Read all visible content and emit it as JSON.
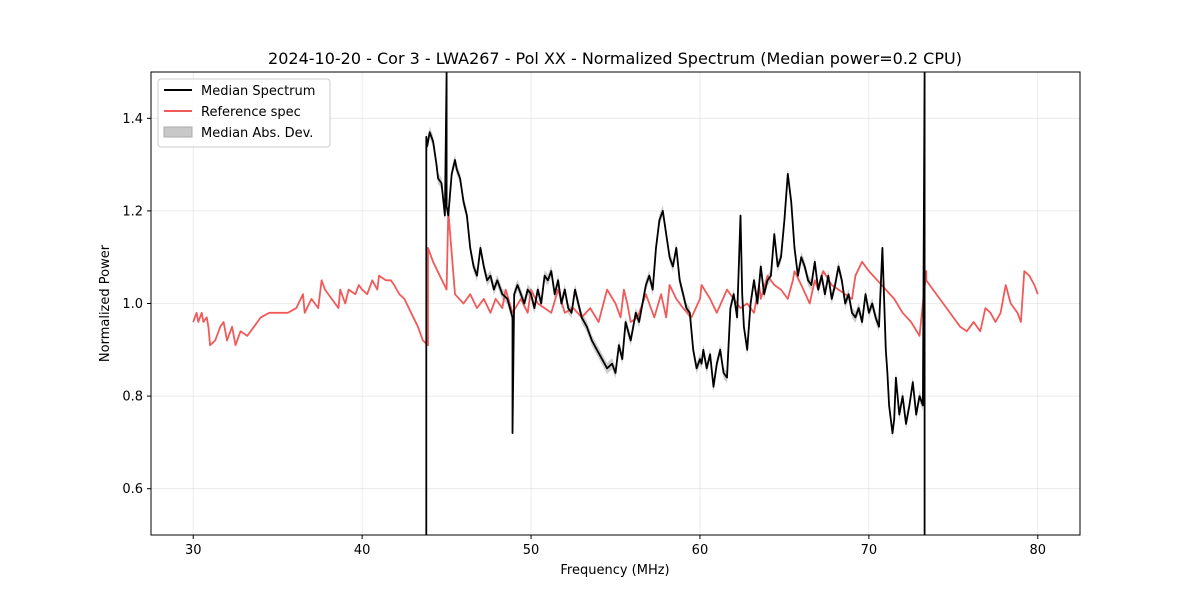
{
  "chart_data": {
    "type": "line",
    "title": "2024-10-20 - Cor 3 - LWA267 - Pol XX - Normalized Spectrum (Median power=0.2 CPU)",
    "xlabel": "Frequency (MHz)",
    "ylabel": "Normalized Power",
    "xlim": [
      27.5,
      82.5
    ],
    "ylim": [
      0.5,
      1.5
    ],
    "xticks": [
      30,
      40,
      50,
      60,
      70,
      80
    ],
    "yticks": [
      0.6,
      0.8,
      1.0,
      1.2,
      1.4
    ],
    "grid": true,
    "legend_position": "top-left",
    "legend": [
      "Median Spectrum",
      "Reference spec",
      "Median Abs. Dev."
    ],
    "colors": {
      "median": "#000000",
      "reference": "#f05a5a",
      "mad": "#c8c8c8"
    },
    "series": [
      {
        "name": "Reference spec",
        "x": [
          30.0,
          30.2,
          30.3,
          30.5,
          30.6,
          30.8,
          30.9,
          31.0,
          31.3,
          31.6,
          31.8,
          32.0,
          32.3,
          32.5,
          32.8,
          33.2,
          33.6,
          34.0,
          34.5,
          35.0,
          35.6,
          36.1,
          36.5,
          36.6,
          37.0,
          37.4,
          37.6,
          37.8,
          38.2,
          38.6,
          38.7,
          39.0,
          39.2,
          39.6,
          39.8,
          40.0,
          40.3,
          40.6,
          40.9,
          41.0,
          41.4,
          41.7,
          41.9,
          42.2,
          42.5,
          42.9,
          43.3,
          43.6,
          43.9,
          43.9,
          44.2,
          44.6,
          45.0,
          45.1,
          45.5,
          46.0,
          46.4,
          46.8,
          47.2,
          47.6,
          47.9,
          48.3,
          48.5,
          48.9,
          49.4,
          49.8,
          50.0,
          50.4,
          50.8,
          51.2,
          51.6,
          52.0,
          52.5,
          53.0,
          53.5,
          54.0,
          54.5,
          55.0,
          55.3,
          55.5,
          55.7,
          55.9,
          56.3,
          56.8,
          57.3,
          57.7,
          58.0,
          58.2,
          58.6,
          59.0,
          59.5,
          60.0,
          60.1,
          60.6,
          61.0,
          61.6,
          62.0,
          62.4,
          62.8,
          63.2,
          63.5,
          63.6,
          64.0,
          64.4,
          64.8,
          65.2,
          65.5,
          65.6,
          66.0,
          66.5,
          66.8,
          67.0,
          67.3,
          67.8,
          68.2,
          68.6,
          69.0,
          69.2,
          69.6,
          70.0,
          70.5,
          71.0,
          71.5,
          72.0,
          72.5,
          73.0,
          73.4,
          73.4,
          73.8,
          74.2,
          74.6,
          75.0,
          75.4,
          75.8,
          76.2,
          76.6,
          76.9,
          77.2,
          77.5,
          77.8,
          78.1,
          78.4,
          78.8,
          79.0,
          79.2,
          79.5,
          79.8,
          80.0
        ],
        "y": [
          0.96,
          0.98,
          0.96,
          0.98,
          0.96,
          0.97,
          0.95,
          0.91,
          0.92,
          0.95,
          0.96,
          0.92,
          0.95,
          0.91,
          0.94,
          0.93,
          0.95,
          0.97,
          0.98,
          0.98,
          0.98,
          0.99,
          1.02,
          0.98,
          1.01,
          0.99,
          1.05,
          1.03,
          1.01,
          0.99,
          1.03,
          1.0,
          1.03,
          1.02,
          1.04,
          1.03,
          1.02,
          1.05,
          1.03,
          1.06,
          1.05,
          1.05,
          1.04,
          1.02,
          1.01,
          0.98,
          0.95,
          0.92,
          0.91,
          1.12,
          1.09,
          1.06,
          1.03,
          1.2,
          1.02,
          1.0,
          1.02,
          0.99,
          1.01,
          0.98,
          1.01,
          0.99,
          1.03,
          0.98,
          1.01,
          0.98,
          1.03,
          1.0,
          0.99,
          0.98,
          1.03,
          0.98,
          0.99,
          0.97,
          0.99,
          0.96,
          1.03,
          1.0,
          0.97,
          1.03,
          1.0,
          0.96,
          0.97,
          1.02,
          0.97,
          1.02,
          0.97,
          1.04,
          1.01,
          0.99,
          0.97,
          1.01,
          1.04,
          1.01,
          0.98,
          1.03,
          1.01,
          0.99,
          1.0,
          0.98,
          1.04,
          1.01,
          1.06,
          1.04,
          1.03,
          1.01,
          1.05,
          1.07,
          1.04,
          1.0,
          1.05,
          1.03,
          1.07,
          1.04,
          1.03,
          1.02,
          1.01,
          1.06,
          1.09,
          1.07,
          1.05,
          1.03,
          1.01,
          0.98,
          0.96,
          0.93,
          1.07,
          1.05,
          1.03,
          1.01,
          0.99,
          0.97,
          0.95,
          0.94,
          0.96,
          0.94,
          0.99,
          0.98,
          0.96,
          0.98,
          1.04,
          1.0,
          0.98,
          0.96,
          1.07,
          1.06,
          1.04,
          1.02
        ]
      },
      {
        "name": "Median Spectrum",
        "x": [
          43.8,
          43.8,
          43.85,
          44.0,
          44.2,
          44.4,
          44.5,
          44.7,
          44.9,
          45.0,
          45.0,
          45.1,
          45.3,
          45.5,
          45.6,
          45.8,
          46.0,
          46.2,
          46.4,
          46.6,
          46.8,
          47.0,
          47.2,
          47.4,
          47.6,
          47.8,
          48.0,
          48.3,
          48.6,
          48.9,
          48.9,
          49.0,
          49.2,
          49.4,
          49.6,
          49.8,
          50.0,
          50.2,
          50.4,
          50.6,
          50.8,
          51.0,
          51.2,
          51.4,
          51.6,
          51.8,
          52.0,
          52.2,
          52.4,
          52.6,
          52.8,
          53.0,
          53.3,
          53.6,
          53.9,
          54.2,
          54.5,
          54.8,
          55.0,
          55.2,
          55.4,
          55.6,
          55.9,
          56.2,
          56.4,
          56.6,
          56.8,
          57.0,
          57.2,
          57.4,
          57.6,
          57.8,
          58.0,
          58.2,
          58.4,
          58.6,
          58.8,
          59.0,
          59.2,
          59.4,
          59.6,
          59.8,
          60.0,
          60.1,
          60.2,
          60.4,
          60.6,
          60.8,
          61.0,
          61.2,
          61.4,
          61.6,
          61.8,
          62.0,
          62.2,
          62.4,
          62.5,
          62.6,
          62.8,
          63.0,
          63.2,
          63.4,
          63.6,
          63.8,
          64.0,
          64.2,
          64.4,
          64.6,
          64.8,
          65.0,
          65.2,
          65.4,
          65.6,
          65.8,
          66.0,
          66.2,
          66.4,
          66.6,
          66.8,
          67.0,
          67.2,
          67.4,
          67.6,
          67.8,
          68.0,
          68.2,
          68.4,
          68.6,
          68.8,
          69.0,
          69.2,
          69.4,
          69.6,
          69.8,
          70.0,
          70.2,
          70.4,
          70.6,
          70.8,
          71.0,
          71.1,
          71.2,
          71.4,
          71.5,
          71.6,
          71.8,
          72.0,
          72.2,
          72.4,
          72.6,
          72.8,
          73.0,
          73.2,
          73.3,
          73.3
        ],
        "y": [
          0.5,
          1.36,
          1.34,
          1.37,
          1.35,
          1.3,
          1.27,
          1.26,
          1.19,
          1.5,
          1.21,
          1.19,
          1.28,
          1.31,
          1.29,
          1.27,
          1.22,
          1.19,
          1.12,
          1.08,
          1.06,
          1.12,
          1.08,
          1.05,
          1.06,
          1.03,
          1.05,
          1.02,
          1.01,
          0.97,
          0.72,
          1.02,
          1.04,
          1.02,
          1.0,
          1.03,
          1.02,
          0.99,
          1.03,
          1.0,
          1.06,
          1.05,
          1.07,
          1.02,
          1.05,
          1.0,
          1.03,
          0.99,
          0.98,
          1.03,
          1.0,
          0.97,
          0.95,
          0.92,
          0.9,
          0.88,
          0.86,
          0.87,
          0.85,
          0.91,
          0.88,
          0.96,
          0.92,
          0.98,
          0.96,
          1.0,
          1.04,
          1.06,
          1.03,
          1.12,
          1.18,
          1.2,
          1.15,
          1.1,
          1.08,
          1.12,
          1.05,
          1.02,
          0.99,
          0.98,
          0.9,
          0.86,
          0.88,
          0.87,
          0.9,
          0.86,
          0.89,
          0.82,
          0.87,
          0.9,
          0.85,
          0.84,
          0.99,
          1.02,
          0.97,
          1.19,
          1.02,
          0.95,
          0.9,
          1.0,
          1.05,
          1.0,
          1.08,
          1.02,
          1.05,
          1.06,
          1.15,
          1.08,
          1.1,
          1.18,
          1.28,
          1.22,
          1.12,
          1.06,
          1.1,
          1.08,
          1.05,
          1.04,
          1.09,
          1.03,
          1.06,
          1.02,
          1.06,
          1.01,
          1.04,
          1.08,
          1.05,
          1.0,
          1.02,
          0.98,
          0.97,
          0.99,
          0.96,
          1.02,
          0.98,
          1.0,
          0.97,
          0.95,
          1.12,
          0.9,
          0.85,
          0.78,
          0.72,
          0.75,
          0.84,
          0.76,
          0.8,
          0.74,
          0.78,
          0.83,
          0.76,
          0.8,
          0.78,
          1.5,
          0.5
        ]
      }
    ]
  }
}
